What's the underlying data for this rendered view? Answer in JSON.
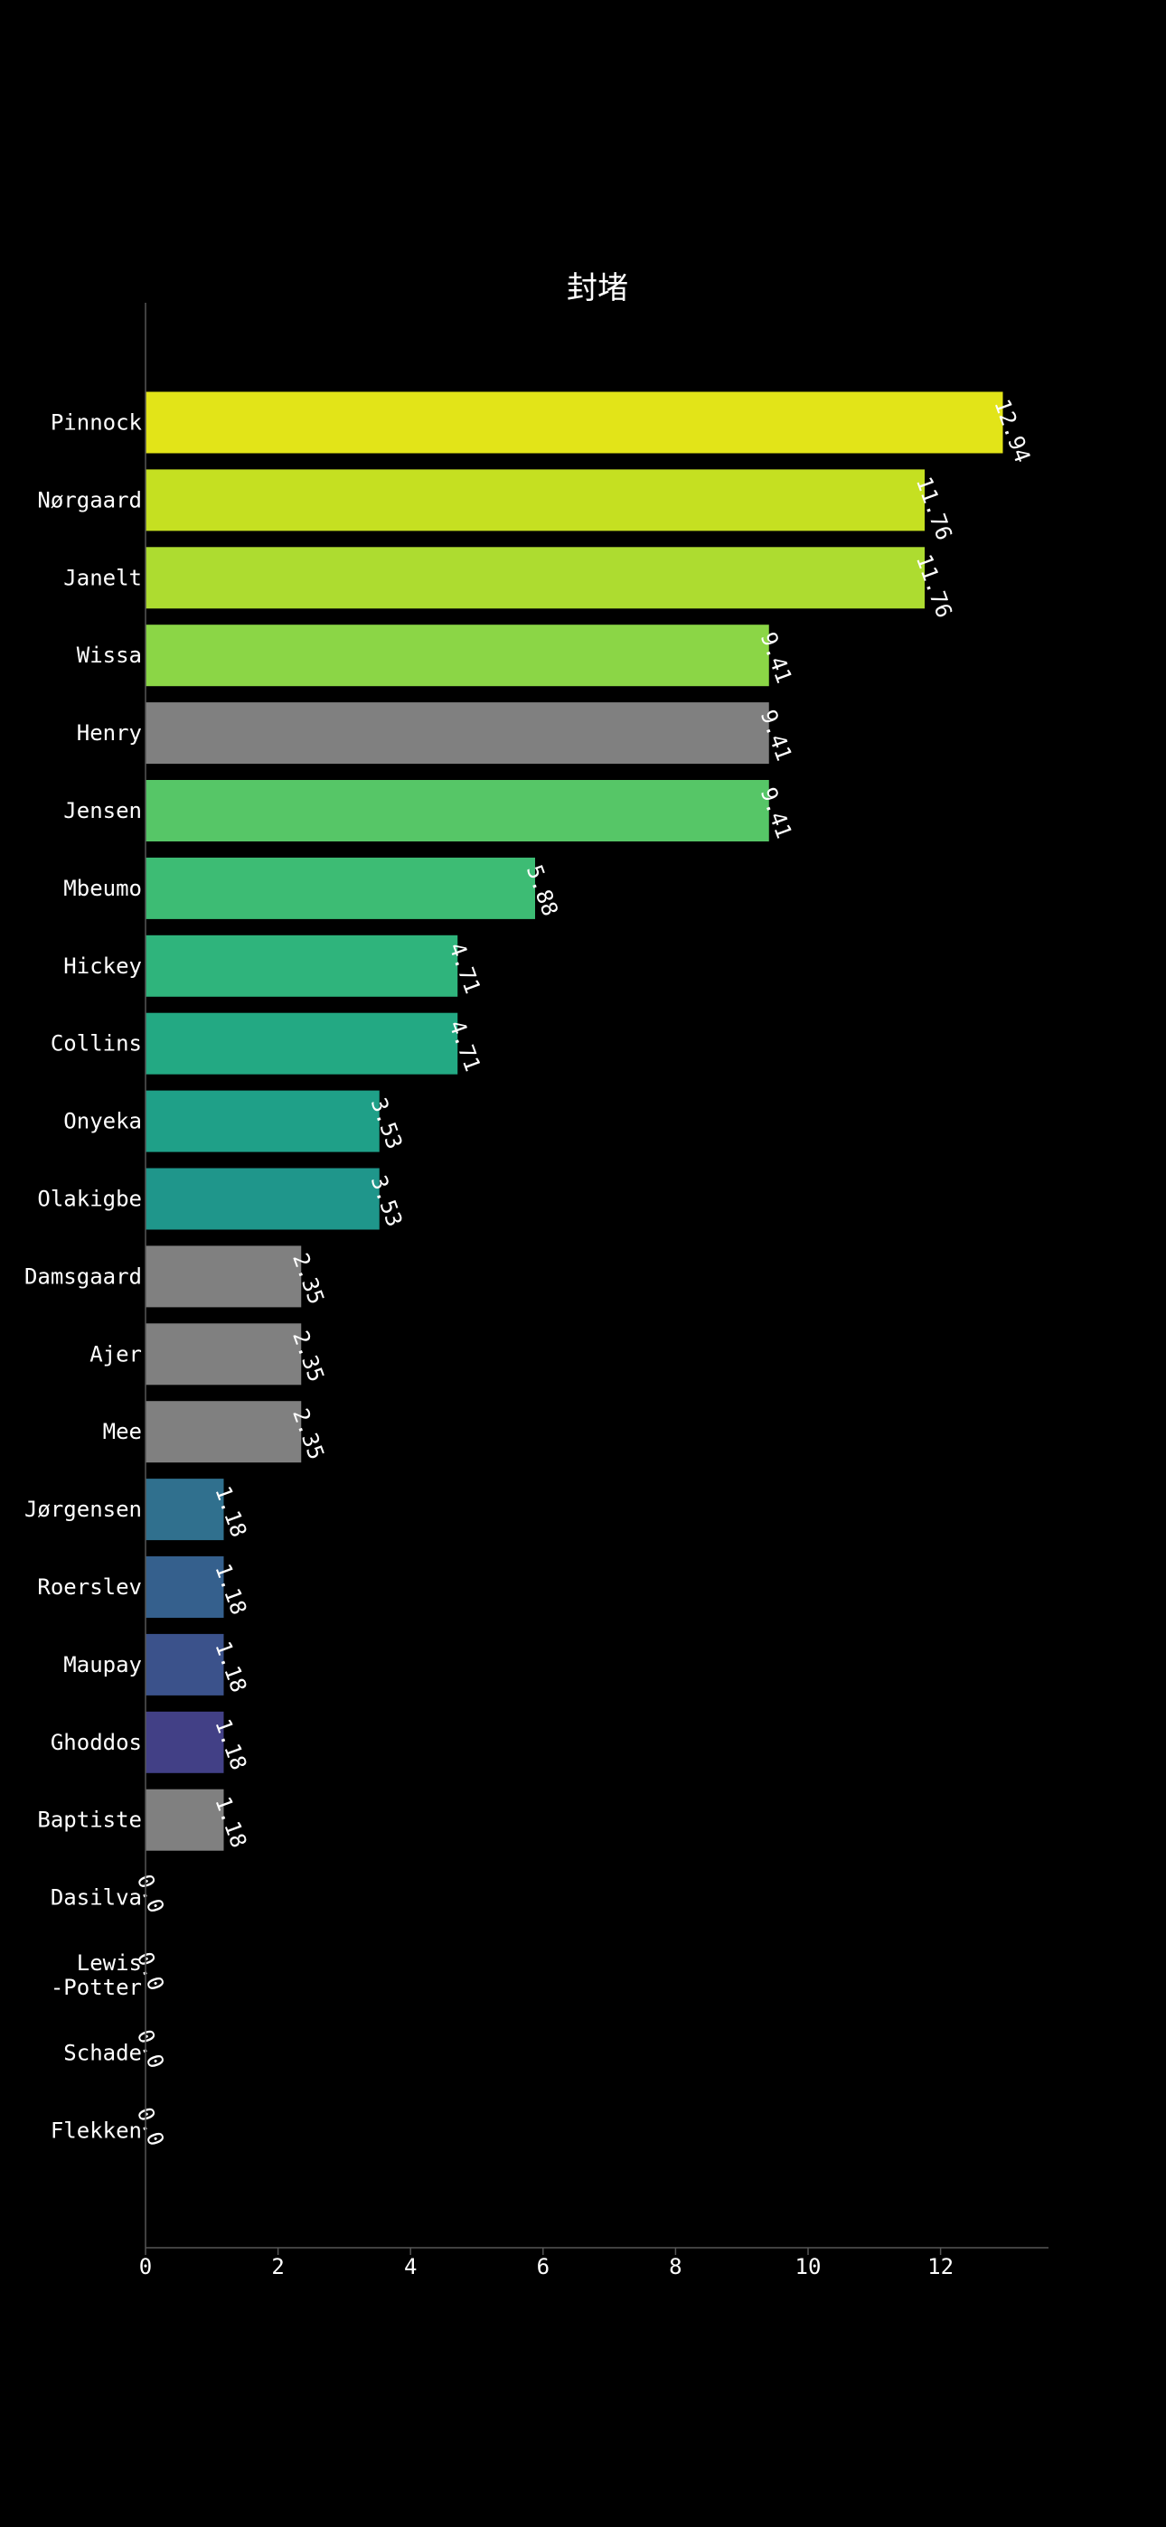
{
  "chart_data": {
    "type": "bar",
    "orientation": "horizontal",
    "title": "封堵",
    "xlabel": "",
    "ylabel": "",
    "xlim": [
      0,
      13.6
    ],
    "xticks": [
      0,
      2,
      4,
      6,
      8,
      10,
      12
    ],
    "grid": false,
    "legend": "none",
    "categories": [
      "Pinnock",
      "Nørgaard",
      "Janelt",
      "Wissa",
      "Henry",
      "Jensen",
      "Mbeumo",
      "Hickey",
      "Collins",
      "Onyeka",
      "Olakigbe",
      "Damsgaard",
      "Ajer",
      "Mee",
      "Jørgensen",
      "Roerslev",
      "Maupay",
      "Ghoddos",
      "Baptiste",
      "Dasilva",
      "Lewis\n-Potter",
      "Schade",
      "Flekken"
    ],
    "values": [
      12.94,
      11.76,
      11.76,
      9.41,
      9.41,
      9.41,
      5.88,
      4.71,
      4.71,
      3.53,
      3.53,
      2.35,
      2.35,
      2.35,
      1.18,
      1.18,
      1.18,
      1.18,
      1.18,
      0.0,
      0.0,
      0.0,
      0.0
    ],
    "value_labels": [
      "12.94",
      "11.76",
      "11.76",
      "9.41",
      "9.41",
      "9.41",
      "5.88",
      "4.71",
      "4.71",
      "3.53",
      "3.53",
      "2.35",
      "2.35",
      "2.35",
      "1.18",
      "1.18",
      "1.18",
      "1.18",
      "1.18",
      "0.0",
      "0.0",
      "0.0",
      "0.0"
    ],
    "colors": [
      "#e2e418",
      "#c5e021",
      "#addc30",
      "#8bd646",
      "#808080",
      "#56c667",
      "#3dbc74",
      "#2fb47c",
      "#23a983",
      "#1fa088",
      "#1f968b",
      "#808080",
      "#808080",
      "#808080",
      "#30708e",
      "#35608d",
      "#3b528b",
      "#424086",
      "#808080",
      "#808080",
      "#808080",
      "#808080",
      "#808080"
    ]
  }
}
